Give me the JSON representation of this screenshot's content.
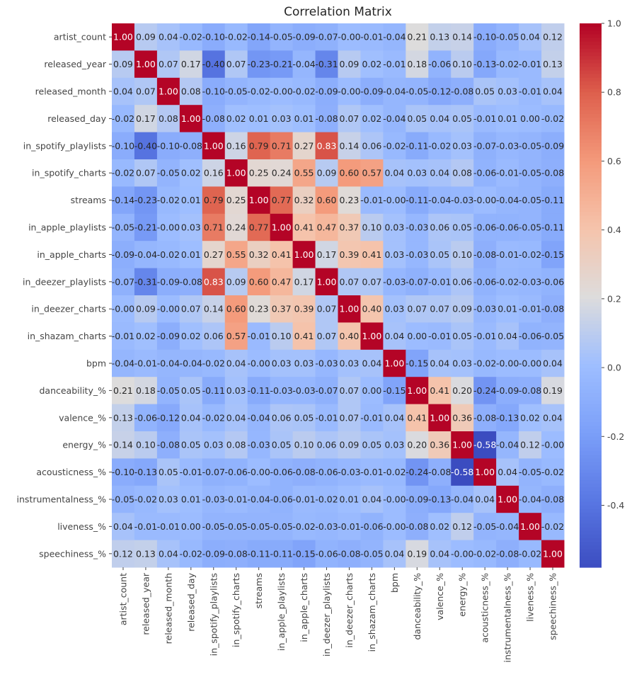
{
  "chart_data": {
    "type": "heatmap",
    "title": "Correlation Matrix",
    "xlabel": "",
    "ylabel": "",
    "labels": [
      "artist_count",
      "released_year",
      "released_month",
      "released_day",
      "in_spotify_playlists",
      "in_spotify_charts",
      "streams",
      "in_apple_playlists",
      "in_apple_charts",
      "in_deezer_playlists",
      "in_deezer_charts",
      "in_shazam_charts",
      "bpm",
      "danceability_%",
      "valence_%",
      "energy_%",
      "acousticness_%",
      "instrumentalness_%",
      "liveness_%",
      "speechiness_%"
    ],
    "values_lower_triangle": [
      [
        "1.00"
      ],
      [
        "0.09",
        "1.00"
      ],
      [
        "0.04",
        "0.07",
        "1.00"
      ],
      [
        "-0.02",
        "0.17",
        "0.08",
        "1.00"
      ],
      [
        "-0.10",
        "-0.40",
        "-0.10",
        "-0.08",
        "1.00"
      ],
      [
        "-0.02",
        "0.07",
        "-0.05",
        "0.02",
        "0.16",
        "1.00"
      ],
      [
        "-0.14",
        "-0.23",
        "-0.02",
        "0.01",
        "0.79",
        "0.25",
        "1.00"
      ],
      [
        "-0.05",
        "-0.21",
        "-0.00",
        "0.03",
        "0.71",
        "0.24",
        "0.77",
        "1.00"
      ],
      [
        "-0.09",
        "-0.04",
        "-0.02",
        "0.01",
        "0.27",
        "0.55",
        "0.32",
        "0.41",
        "1.00"
      ],
      [
        "-0.07",
        "-0.31",
        "-0.09",
        "-0.08",
        "0.83",
        "0.09",
        "0.60",
        "0.47",
        "0.17",
        "1.00"
      ],
      [
        "-0.00",
        "0.09",
        "-0.00",
        "0.07",
        "0.14",
        "0.60",
        "0.23",
        "0.37",
        "0.39",
        "0.07",
        "1.00"
      ],
      [
        "-0.01",
        "0.02",
        "-0.09",
        "0.02",
        "0.06",
        "0.57",
        "-0.01",
        "0.10",
        "0.41",
        "0.07",
        "0.40",
        "1.00"
      ],
      [
        "-0.04",
        "-0.01",
        "-0.04",
        "-0.04",
        "-0.02",
        "0.04",
        "-0.00",
        "0.03",
        "0.03",
        "-0.03",
        "0.03",
        "0.04",
        "1.00"
      ],
      [
        "0.21",
        "0.18",
        "-0.05",
        "0.05",
        "-0.11",
        "0.03",
        "-0.11",
        "-0.03",
        "-0.03",
        "-0.07",
        "0.07",
        "0.00",
        "-0.15",
        "1.00"
      ],
      [
        "0.13",
        "-0.06",
        "-0.12",
        "0.04",
        "-0.02",
        "0.04",
        "-0.04",
        "0.06",
        "0.05",
        "-0.01",
        "0.07",
        "-0.01",
        "0.04",
        "0.41",
        "1.00"
      ],
      [
        "0.14",
        "0.10",
        "-0.08",
        "0.05",
        "0.03",
        "0.08",
        "-0.03",
        "0.05",
        "0.10",
        "0.06",
        "0.09",
        "0.05",
        "0.03",
        "0.20",
        "0.36",
        "1.00"
      ],
      [
        "-0.10",
        "-0.13",
        "0.05",
        "-0.01",
        "-0.07",
        "-0.06",
        "-0.00",
        "-0.06",
        "-0.08",
        "-0.06",
        "-0.03",
        "-0.01",
        "-0.02",
        "-0.24",
        "-0.08",
        "-0.58",
        "1.00"
      ],
      [
        "-0.05",
        "-0.02",
        "0.03",
        "0.01",
        "-0.03",
        "-0.01",
        "-0.04",
        "-0.06",
        "-0.01",
        "-0.02",
        "0.01",
        "0.04",
        "-0.00",
        "-0.09",
        "-0.13",
        "-0.04",
        "0.04",
        "1.00"
      ],
      [
        "0.04",
        "-0.01",
        "-0.01",
        "0.00",
        "-0.05",
        "-0.05",
        "-0.05",
        "-0.05",
        "-0.02",
        "-0.03",
        "-0.01",
        "-0.06",
        "-0.00",
        "-0.08",
        "0.02",
        "0.12",
        "-0.05",
        "-0.04",
        "1.00"
      ],
      [
        "0.12",
        "0.13",
        "0.04",
        "-0.02",
        "-0.09",
        "-0.08",
        "-0.11",
        "-0.11",
        "-0.15",
        "-0.06",
        "-0.08",
        "-0.05",
        "0.04",
        "0.19",
        "0.04",
        "-0.00",
        "-0.02",
        "-0.08",
        "-0.02",
        "1.00"
      ]
    ],
    "colormap": "coolwarm",
    "vmin": -0.58,
    "vmax": 1.0,
    "colorbar_ticks": [
      "-0.4",
      "-0.2",
      "0.0",
      "0.2",
      "0.4",
      "0.6",
      "0.8",
      "1.0"
    ],
    "colorbar_placement": "right",
    "grid": false
  }
}
